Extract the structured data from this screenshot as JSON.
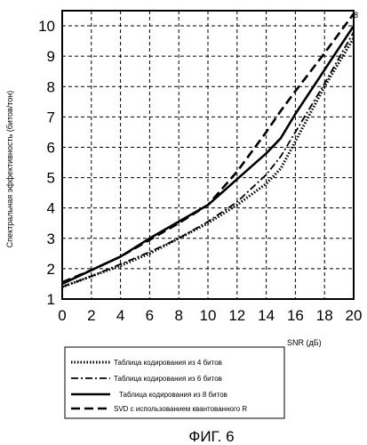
{
  "figure_label": "ФИГ. 6",
  "top_right_mark": "8",
  "chart_data": {
    "type": "line",
    "xlabel": "SNR (дБ)",
    "ylabel": "Спектральная эффективность (битов/тон)",
    "xlim": [
      0,
      20
    ],
    "ylim": [
      1,
      10.5
    ],
    "x_ticks": [
      0,
      2,
      4,
      6,
      8,
      10,
      12,
      14,
      16,
      18,
      20
    ],
    "y_ticks": [
      1,
      2,
      3,
      4,
      5,
      6,
      7,
      8,
      9,
      10
    ],
    "grid": true,
    "legend_position": "bottom",
    "series": [
      {
        "name": "Таблица кодирования из 4 битов",
        "style": "dotted",
        "x": [
          0,
          2,
          4,
          6,
          8,
          10,
          12,
          14,
          15,
          16,
          18,
          20
        ],
        "y": [
          1.4,
          1.75,
          2.1,
          2.5,
          3.0,
          3.5,
          4.1,
          4.8,
          5.3,
          6.2,
          8.0,
          9.6
        ]
      },
      {
        "name": "Таблица кодирования из 6 битов",
        "style": "dash-dot",
        "x": [
          0,
          2,
          4,
          6,
          8,
          10,
          12,
          14,
          15,
          16,
          18,
          20
        ],
        "y": [
          1.4,
          1.75,
          2.15,
          2.55,
          3.0,
          3.55,
          4.2,
          5.1,
          5.7,
          6.5,
          8.1,
          9.8
        ]
      },
      {
        "name": "Таблица кодирования из 8 битов",
        "style": "solid",
        "x": [
          0,
          2,
          4,
          6,
          8,
          10,
          12,
          14,
          15,
          16,
          18,
          20
        ],
        "y": [
          1.5,
          1.95,
          2.4,
          3.0,
          3.55,
          4.1,
          4.95,
          5.8,
          6.3,
          7.1,
          8.55,
          10.0
        ]
      },
      {
        "name": "SVD с использованием квантованного R",
        "style": "dashed",
        "x": [
          0,
          2,
          4,
          6,
          8,
          10,
          12,
          14,
          15,
          16,
          18,
          20
        ],
        "y": [
          1.55,
          1.95,
          2.4,
          2.95,
          3.5,
          4.1,
          5.2,
          6.5,
          7.2,
          7.85,
          9.1,
          10.4
        ]
      }
    ]
  }
}
